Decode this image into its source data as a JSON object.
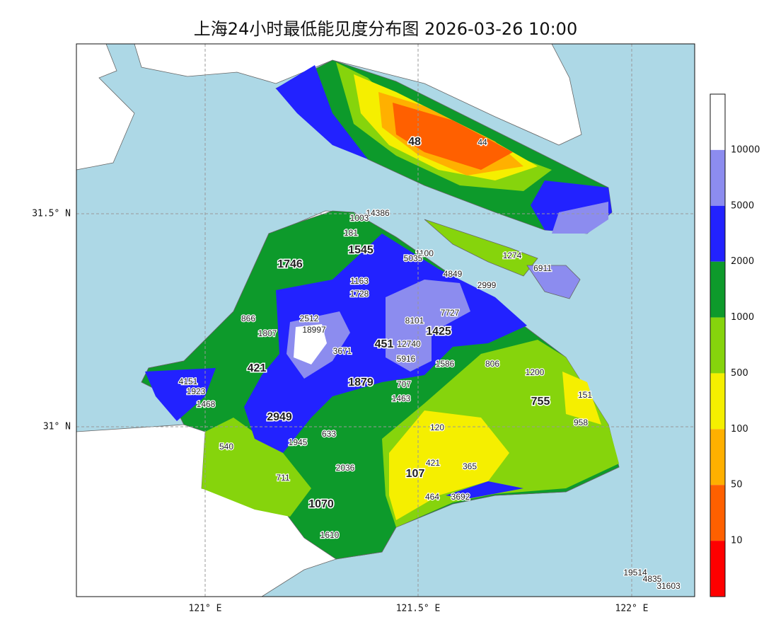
{
  "title": "上海24小时最低能见度分布图 2026-03-26 10:00",
  "lat_labels": [
    "31.5° N",
    "31° N"
  ],
  "lon_labels": [
    "121° E",
    "121.5° E",
    "122° E"
  ],
  "colorbar": {
    "labels": [
      10000,
      5000,
      2000,
      1000,
      500,
      100,
      50,
      10
    ],
    "colors": [
      "#ffffff",
      "#8c8cef",
      "#2222ff",
      "#0d9a2b",
      "#86d40c",
      "#f5ef00",
      "#ffb000",
      "#ff6000",
      "#ff0000"
    ]
  },
  "major_labels": [
    48,
    1746,
    1545,
    421,
    451,
    1425,
    1879,
    2949,
    755,
    107,
    1070
  ],
  "station_labels": [
    44,
    14386,
    1003,
    181,
    1100,
    5035,
    1274,
    6911,
    4849,
    2999,
    1163,
    1728,
    7727,
    2512,
    18997,
    866,
    1807,
    8101,
    12740,
    3671,
    5916,
    1586,
    806,
    1200,
    4151,
    1923,
    1468,
    707,
    1463,
    151,
    958,
    120,
    633,
    540,
    1945,
    2036,
    421,
    365,
    711,
    464,
    3692,
    1610,
    19514,
    4835,
    31603
  ]
}
